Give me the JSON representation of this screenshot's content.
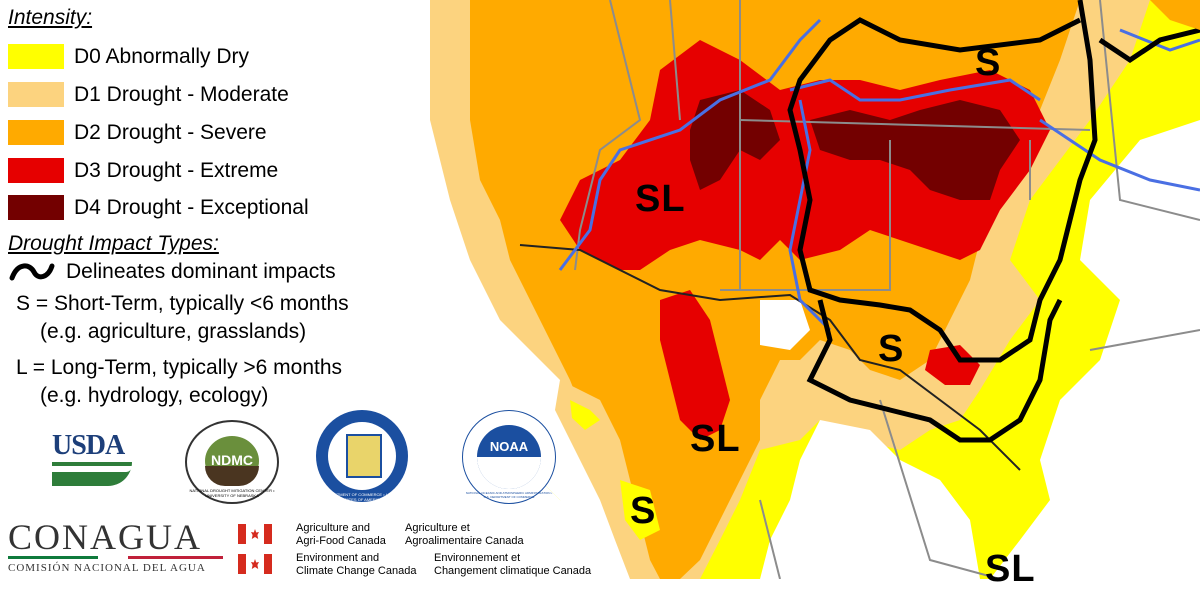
{
  "legend": {
    "intensity_title": "Intensity:",
    "categories": [
      {
        "code": "D0",
        "label": "D0 Abnormally Dry",
        "color": "#ffff00"
      },
      {
        "code": "D1",
        "label": "D1 Drought - Moderate",
        "color": "#fcd37f"
      },
      {
        "code": "D2",
        "label": "D2 Drought - Severe",
        "color": "#ffaa00"
      },
      {
        "code": "D3",
        "label": "D3 Drought - Extreme",
        "color": "#e60000"
      },
      {
        "code": "D4",
        "label": "D4 Drought - Exceptional",
        "color": "#730000"
      }
    ],
    "impact_title": "Drought Impact Types:",
    "delineates": "Delineates dominant impacts",
    "short_term": "S = Short-Term, typically <6 months",
    "short_term_eg": "(e.g. agriculture, grasslands)",
    "long_term": "L = Long-Term, typically >6 months",
    "long_term_eg": "(e.g. hydrology, ecology)"
  },
  "map_labels": [
    "S",
    "SL",
    "S",
    "SL",
    "S",
    "SL"
  ],
  "logos": {
    "usda": "USDA",
    "ndmc": "NDMC",
    "ndmc_ring": "NATIONAL DROUGHT MITIGATION CENTER • UNIVERSITY OF NEBRASKA",
    "commerce_ring": "DEPARTMENT OF COMMERCE • UNITED STATES OF AMERICA",
    "noaa": "NOAA",
    "noaa_ring": "NATIONAL OCEANIC AND ATMOSPHERIC ADMINISTRATION • U.S. DEPARTMENT OF COMMERCE",
    "conagua": "CONAGUA",
    "conagua_sub": "COMISIÓN NACIONAL DEL AGUA",
    "canada_en1": "Agriculture and",
    "canada_en2": "Agri-Food Canada",
    "canada_fr1": "Agriculture et",
    "canada_fr2": "Agroalimentaire Canada",
    "canada_en3": "Environment and",
    "canada_en4": "Climate Change Canada",
    "canada_fr3": "Environnement et",
    "canada_fr4": "Changement climatique Canada"
  },
  "colors": {
    "river": "#4a6fe3",
    "border": "#8c8c8c",
    "impact_line": "#000000"
  }
}
